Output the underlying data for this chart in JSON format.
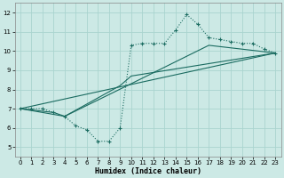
{
  "xlabel": "Humidex (Indice chaleur)",
  "xlim": [
    -0.5,
    23.5
  ],
  "ylim": [
    4.5,
    12.5
  ],
  "xticks": [
    0,
    1,
    2,
    3,
    4,
    5,
    6,
    7,
    8,
    9,
    10,
    11,
    12,
    13,
    14,
    15,
    16,
    17,
    18,
    19,
    20,
    21,
    22,
    23
  ],
  "yticks": [
    5,
    6,
    7,
    8,
    9,
    10,
    11,
    12
  ],
  "bg_color": "#cce9e5",
  "grid_color": "#aad4cf",
  "line_color": "#1a6b60",
  "dotted_line": {
    "x": [
      0,
      1,
      2,
      3,
      4,
      5,
      6,
      7,
      8,
      9,
      10,
      11,
      12,
      13,
      14,
      15,
      16,
      17,
      18,
      19,
      20,
      21,
      22,
      23
    ],
    "y": [
      7.0,
      7.0,
      7.0,
      6.8,
      6.6,
      6.1,
      5.9,
      5.3,
      5.3,
      6.0,
      10.3,
      10.4,
      10.4,
      10.4,
      11.1,
      11.9,
      11.4,
      10.7,
      10.6,
      10.5,
      10.4,
      10.4,
      10.1,
      9.9
    ]
  },
  "line1": {
    "x": [
      0,
      3,
      4,
      9,
      10,
      23
    ],
    "y": [
      7.0,
      6.8,
      6.6,
      8.2,
      8.7,
      9.9
    ]
  },
  "line2": {
    "x": [
      0,
      4,
      10,
      17,
      23
    ],
    "y": [
      7.0,
      6.6,
      8.3,
      10.3,
      9.9
    ]
  },
  "line3": {
    "x": [
      0,
      23
    ],
    "y": [
      7.0,
      9.9
    ]
  }
}
